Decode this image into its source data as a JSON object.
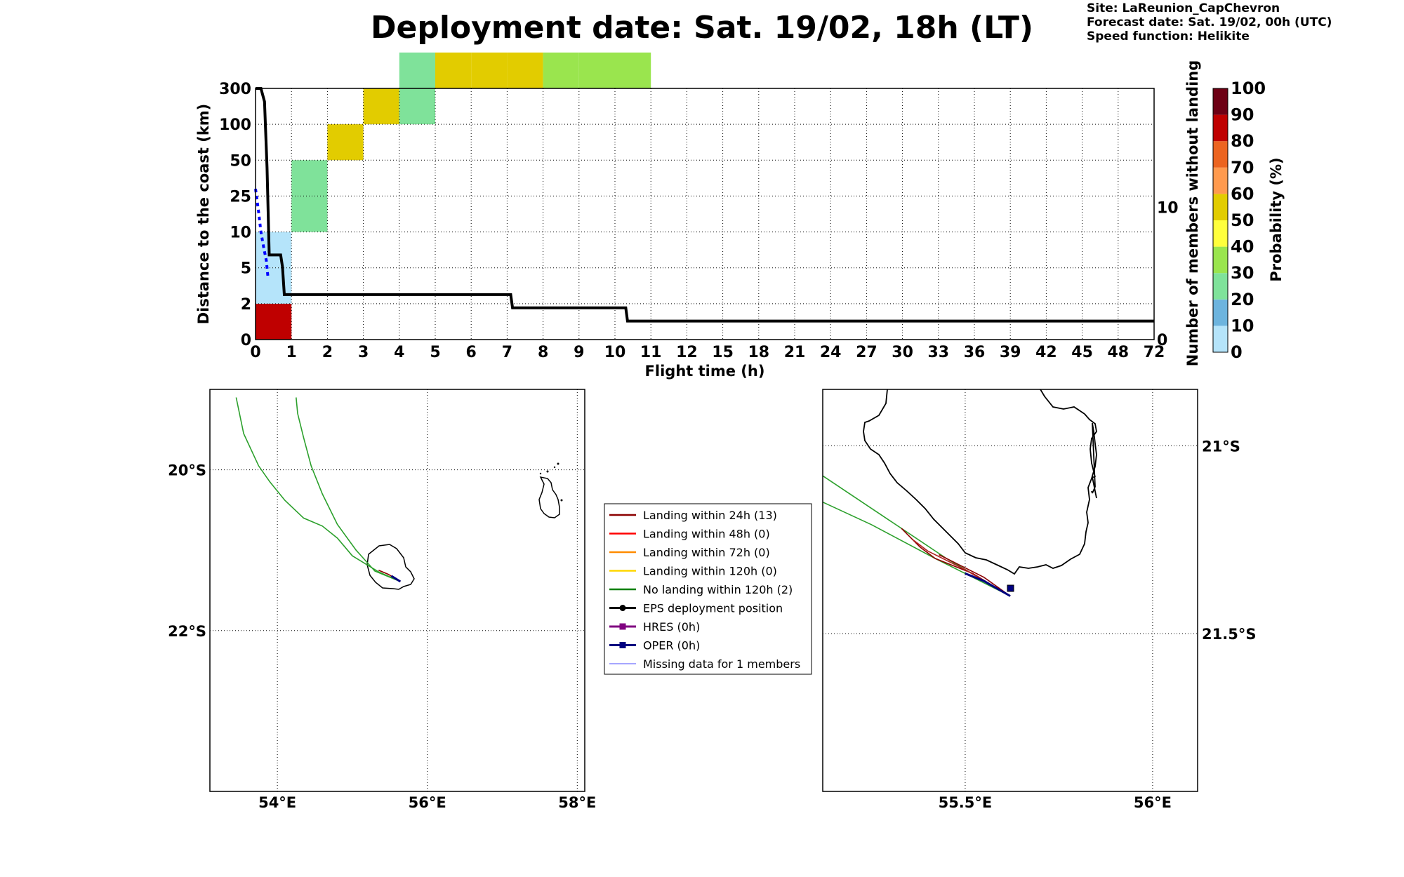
{
  "header": {
    "title": "Deployment date: Sat. 19/02, 18h (LT)",
    "site": "Site: LaReunion_CapChevron",
    "forecast": "Forecast date: Sat. 19/02, 00h (UTC)",
    "speed": "Speed function: Helikite"
  },
  "chart_data": [
    {
      "type": "heatmap",
      "xlabel": "Flight time (h)",
      "ylabel": "Distance to the coast (km)",
      "y2label": "Number of members without landing",
      "x_ticks": [
        "0",
        "1",
        "2",
        "3",
        "4",
        "5",
        "6",
        "7",
        "8",
        "9",
        "10",
        "11",
        "12",
        "15",
        "18",
        "21",
        "24",
        "27",
        "30",
        "33",
        "36",
        "39",
        "42",
        "45",
        "48",
        "72"
      ],
      "y_ticks": [
        "0",
        "2",
        "5",
        "10",
        "25",
        "50",
        "100",
        "300"
      ],
      "y2_ticks": [
        "0",
        "10"
      ],
      "y2lim": [
        0,
        19
      ],
      "grid": true,
      "cells": [
        {
          "x": 0,
          "y": 0,
          "prob": 85
        },
        {
          "x": 0,
          "y": 1,
          "prob": 5
        },
        {
          "x": 0,
          "y": 2,
          "prob": 5
        },
        {
          "x": 1,
          "y": 3,
          "prob": 25
        },
        {
          "x": 1,
          "y": 4,
          "prob": 25
        },
        {
          "x": 2,
          "y": 5,
          "prob": 55
        },
        {
          "x": 3,
          "y": 6,
          "prob": 55
        },
        {
          "x": 4,
          "y": 6,
          "prob": 25
        },
        {
          "x": 4,
          "y": 7,
          "prob": 25
        },
        {
          "x": 5,
          "y": 7,
          "prob": 55
        },
        {
          "x": 6,
          "y": 7,
          "prob": 55
        },
        {
          "x": 7,
          "y": 7,
          "prob": 55
        },
        {
          "x": 8,
          "y": 7,
          "prob": 35
        },
        {
          "x": 9,
          "y": 7,
          "prob": 35
        },
        {
          "x": 10,
          "y": 7,
          "prob": 35
        }
      ],
      "members_line": {
        "name": "Number of members without landing",
        "color": "#000000",
        "x": [
          0,
          0.15,
          0.25,
          0.32,
          0.38,
          0.4,
          0.7,
          0.75,
          0.8,
          0.82,
          7.1,
          7.15,
          10.3,
          10.35,
          25
        ],
        "y": [
          19,
          19,
          18,
          13,
          6.4,
          6.4,
          6.4,
          5.5,
          3.4,
          3.4,
          3.4,
          2.4,
          2.4,
          1.4,
          1.4
        ]
      },
      "missing_line": {
        "name": "Missing data",
        "color": "#0000ff",
        "x": [
          0,
          0.08,
          0.15,
          0.22,
          0.3,
          0.35
        ],
        "y": [
          4.2,
          3.6,
          3.0,
          2.6,
          2.2,
          1.7
        ]
      },
      "colorbar": {
        "label": "Probability (%)",
        "ticks": [
          "0",
          "10",
          "20",
          "30",
          "40",
          "50",
          "60",
          "70",
          "80",
          "90",
          "100"
        ],
        "colors": [
          "#b5e4fa",
          "#6db4de",
          "#7fe29a",
          "#9ae54e",
          "#ffff3c",
          "#e2cc00",
          "#ff9a4e",
          "#ec6420",
          "#bf0000",
          "#6d0014"
        ]
      }
    },
    {
      "type": "map",
      "xlabel_ticks": [
        "54°E",
        "56°E",
        "58°E"
      ],
      "ylabel_ticks": [
        "20°S",
        "22°S"
      ],
      "lon_range": [
        53.1,
        58.1
      ],
      "lat_range": [
        -24.0,
        -19.0
      ],
      "grid": true,
      "trajectories": [
        {
          "name": "No landing within 120h",
          "color": "#2ca02c",
          "lon": [
            55.64,
            55.35,
            55.0,
            54.8,
            54.6,
            54.35,
            54.1,
            53.9,
            53.75,
            53.55,
            53.45
          ],
          "lat": [
            -21.39,
            -21.27,
            -21.07,
            -20.85,
            -20.7,
            -20.6,
            -20.38,
            -20.15,
            -19.95,
            -19.55,
            -19.1
          ]
        },
        {
          "name": "No landing within 120h",
          "color": "#2ca02c",
          "lon": [
            55.64,
            55.3,
            55.05,
            54.8,
            54.6,
            54.45,
            54.35,
            54.27,
            54.25
          ],
          "lat": [
            -21.39,
            -21.26,
            -21.0,
            -20.68,
            -20.3,
            -19.95,
            -19.6,
            -19.3,
            -19.1
          ]
        },
        {
          "name": "Landing within 24h",
          "color": "#8b0000",
          "lon": [
            55.64,
            55.48,
            55.35
          ],
          "lat": [
            -21.39,
            -21.3,
            -21.25
          ]
        },
        {
          "name": "OPER",
          "color": "#000080",
          "lon": [
            55.64,
            55.52
          ],
          "lat": [
            -21.39,
            -21.32
          ]
        }
      ]
    },
    {
      "type": "map",
      "xlabel_ticks": [
        "55.5°E",
        "56°E"
      ],
      "ylabel_ticks": [
        "21°S",
        "21.5°S"
      ],
      "lon_range": [
        55.12,
        56.12
      ],
      "lat_range": [
        -21.92,
        -20.85
      ],
      "grid": true,
      "trajectories": [
        {
          "name": "No landing within 120h",
          "color": "#2ca02c",
          "lon": [
            55.62,
            55.45,
            55.3,
            55.12
          ],
          "lat": [
            -21.4,
            -21.3,
            -21.2,
            -21.08
          ]
        },
        {
          "name": "No landing within 120h",
          "color": "#2ca02c",
          "lon": [
            55.62,
            55.42,
            55.25,
            55.12
          ],
          "lat": [
            -21.4,
            -21.3,
            -21.21,
            -21.15
          ]
        },
        {
          "name": "Landing within 24h",
          "color": "#8b0000",
          "lon": [
            55.62,
            55.52,
            55.42,
            55.38,
            55.33
          ],
          "lat": [
            -21.4,
            -21.34,
            -21.3,
            -21.27,
            -21.22
          ]
        },
        {
          "name": "Landing within 24h",
          "color": "#8b0000",
          "lon": [
            55.62,
            55.55,
            55.47,
            55.43
          ],
          "lat": [
            -21.4,
            -21.35,
            -21.31,
            -21.29
          ]
        },
        {
          "name": "Landing within 24h",
          "color": "#b22222",
          "lon": [
            55.62,
            55.5,
            55.4,
            55.36
          ],
          "lat": [
            -21.4,
            -21.33,
            -21.28,
            -21.25
          ]
        },
        {
          "name": "OPER",
          "color": "#000080",
          "lon": [
            55.62,
            55.55,
            55.5
          ],
          "lat": [
            -21.4,
            -21.36,
            -21.34
          ]
        }
      ]
    }
  ],
  "legend": {
    "items": [
      {
        "label": "Landing within 24h (13)",
        "color": "#8b0000",
        "style": "line"
      },
      {
        "label": "Landing within 48h (0)",
        "color": "#ff0000",
        "style": "line"
      },
      {
        "label": "Landing within 72h (0)",
        "color": "#ff8c00",
        "style": "line"
      },
      {
        "label": "Landing within 120h (0)",
        "color": "#ffd700",
        "style": "line"
      },
      {
        "label": "No landing within 120h (2)",
        "color": "#008000",
        "style": "line"
      },
      {
        "label": "EPS deployment position",
        "color": "#000000",
        "style": "dot"
      },
      {
        "label": "HRES (0h)",
        "color": "#800080",
        "style": "square"
      },
      {
        "label": "OPER (0h)",
        "color": "#000080",
        "style": "square"
      },
      {
        "label": "Missing data for 1 members",
        "color": "#4d4dff",
        "style": "thin"
      }
    ]
  }
}
